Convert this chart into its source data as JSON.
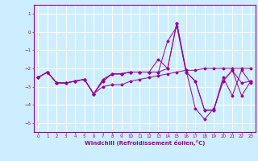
{
  "xlabel": "Windchill (Refroidissement éolien,°C)",
  "bg_color": "#cceeff",
  "line_color": "#990099",
  "grid_color": "#ffffff",
  "xlim": [
    -0.5,
    23.5
  ],
  "ylim": [
    -5.5,
    1.5
  ],
  "yticks": [
    1,
    0,
    -1,
    -2,
    -3,
    -4,
    -5
  ],
  "xticks": [
    0,
    1,
    2,
    3,
    4,
    5,
    6,
    7,
    8,
    9,
    10,
    11,
    12,
    13,
    14,
    15,
    16,
    17,
    18,
    19,
    20,
    21,
    22,
    23
  ],
  "x": [
    0,
    1,
    2,
    3,
    4,
    5,
    6,
    7,
    8,
    9,
    10,
    11,
    12,
    13,
    14,
    15,
    16,
    17,
    18,
    19,
    20,
    21,
    22,
    23
  ],
  "series": [
    [
      -2.5,
      -2.2,
      -2.8,
      -2.8,
      -2.7,
      -2.6,
      -3.4,
      -2.7,
      -2.3,
      -2.3,
      -2.2,
      -2.2,
      -2.2,
      -2.2,
      -0.5,
      0.3,
      -2.2,
      -2.7,
      -4.3,
      -4.3,
      -2.7,
      -2.1,
      -2.8,
      -2.7
    ],
    [
      -2.5,
      -2.2,
      -2.8,
      -2.8,
      -2.7,
      -2.6,
      -3.4,
      -2.6,
      -2.3,
      -2.3,
      -2.2,
      -2.2,
      -2.2,
      -1.5,
      -2.0,
      0.5,
      -2.2,
      -2.7,
      -4.3,
      -4.3,
      -2.5,
      -3.5,
      -2.1,
      -2.8
    ],
    [
      -2.5,
      -2.2,
      -2.8,
      -2.8,
      -2.7,
      -2.6,
      -3.4,
      -3.0,
      -2.9,
      -2.9,
      -2.7,
      -2.6,
      -2.5,
      -2.4,
      -2.3,
      -2.2,
      -2.1,
      -2.1,
      -2.0,
      -2.0,
      -2.0,
      -2.0,
      -2.0,
      -2.0
    ],
    [
      -2.5,
      -2.2,
      -2.8,
      -2.8,
      -2.7,
      -2.6,
      -3.4,
      -2.7,
      -2.3,
      -2.3,
      -2.2,
      -2.2,
      -2.2,
      -2.2,
      -2.0,
      0.5,
      -2.1,
      -4.2,
      -4.8,
      -4.2,
      -2.7,
      -2.1,
      -3.5,
      -2.7
    ]
  ]
}
